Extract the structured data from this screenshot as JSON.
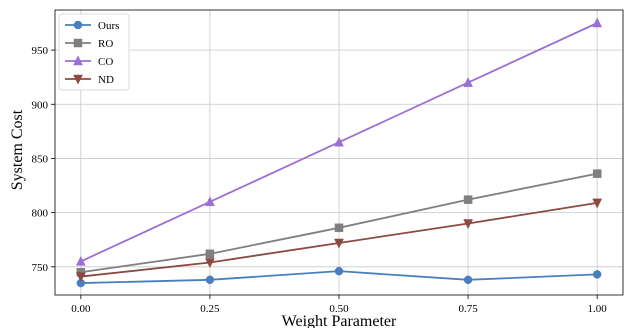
{
  "chart_data": {
    "type": "line",
    "title": "",
    "xlabel": "Weight Parameter",
    "ylabel": "System Cost",
    "x": [
      0.0,
      0.25,
      0.5,
      0.75,
      1.0
    ],
    "x_tick_labels": [
      "0.00",
      "0.25",
      "0.50",
      "0.75",
      "1.00"
    ],
    "y_ticks": [
      750,
      800,
      850,
      900,
      950
    ],
    "xlim": [
      -0.05,
      1.05
    ],
    "ylim": [
      724,
      987
    ],
    "grid": true,
    "legend_position": "top-left",
    "series": [
      {
        "name": "Ours",
        "marker": "circle",
        "color": "#4a7fbf",
        "values": [
          735,
          738,
          746,
          738,
          743
        ]
      },
      {
        "name": "RO",
        "marker": "square",
        "color": "#7f7f7f",
        "values": [
          745,
          762,
          786,
          812,
          836
        ]
      },
      {
        "name": "CO",
        "marker": "triangle-up",
        "color": "#9b6fd6",
        "values": [
          755,
          810,
          865,
          920,
          975
        ]
      },
      {
        "name": "ND",
        "marker": "triangle-down",
        "color": "#8b4a42",
        "values": [
          741,
          754,
          772,
          790,
          809
        ]
      }
    ]
  }
}
